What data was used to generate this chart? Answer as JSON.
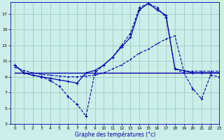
{
  "xlabel": "Graphe des températures (°c)",
  "background_color": "#cceee8",
  "grid_color": "#99ccc4",
  "line_color": "#0000aa",
  "xlim": [
    -0.5,
    23
  ],
  "ylim": [
    3,
    18.5
  ],
  "yticks": [
    3,
    5,
    7,
    9,
    11,
    13,
    15,
    17
  ],
  "xticks": [
    0,
    1,
    2,
    3,
    4,
    5,
    6,
    7,
    8,
    9,
    10,
    11,
    12,
    13,
    14,
    15,
    16,
    17,
    18,
    19,
    20,
    21,
    22,
    23
  ],
  "line1_x": [
    0,
    1,
    2,
    3,
    4,
    5,
    6,
    7,
    8,
    9,
    10,
    11,
    12,
    13,
    14,
    15,
    16,
    17,
    18,
    19,
    20,
    21,
    22,
    23
  ],
  "line1_y": [
    10.5,
    9.5,
    9.2,
    9.0,
    8.5,
    7.8,
    6.5,
    5.5,
    4.0,
    9.5,
    10.5,
    11.5,
    13.0,
    14.5,
    17.8,
    18.3,
    17.8,
    16.5,
    10.0,
    9.5,
    7.5,
    6.2,
    9.2,
    9.0
  ],
  "line2_x": [
    0,
    1,
    2,
    3,
    4,
    5,
    6,
    7,
    8,
    9,
    10,
    11,
    12,
    13,
    14,
    15,
    16,
    17,
    18,
    19,
    20,
    21,
    22,
    23
  ],
  "line2_y": [
    9.5,
    9.5,
    9.5,
    9.5,
    9.5,
    9.5,
    9.5,
    9.5,
    9.5,
    9.5,
    9.5,
    9.5,
    9.5,
    9.5,
    9.5,
    9.5,
    9.5,
    9.5,
    9.5,
    9.5,
    9.5,
    9.5,
    9.5,
    9.5
  ],
  "line3_x": [
    0,
    1,
    2,
    3,
    4,
    5,
    6,
    7,
    8,
    9,
    10,
    11,
    12,
    13,
    14,
    15,
    16,
    17,
    18,
    19,
    20,
    21,
    22,
    23
  ],
  "line3_y": [
    10.2,
    9.8,
    9.5,
    9.3,
    9.2,
    9.1,
    9.0,
    9.0,
    9.1,
    9.2,
    9.5,
    10.0,
    10.5,
    11.2,
    12.0,
    12.5,
    13.2,
    13.8,
    14.2,
    9.7,
    9.7,
    9.7,
    9.7,
    9.7
  ],
  "line4_x": [
    0,
    1,
    2,
    3,
    4,
    5,
    6,
    7,
    8,
    9,
    10,
    11,
    12,
    13,
    14,
    15,
    16,
    17,
    18,
    19,
    20,
    21,
    22,
    23
  ],
  "line4_y": [
    10.5,
    9.5,
    9.2,
    9.0,
    8.8,
    8.6,
    8.4,
    8.2,
    9.5,
    9.8,
    10.5,
    11.5,
    12.8,
    14.0,
    17.5,
    18.3,
    17.5,
    16.8,
    10.0,
    9.8,
    9.5,
    9.5,
    9.5,
    9.5
  ]
}
